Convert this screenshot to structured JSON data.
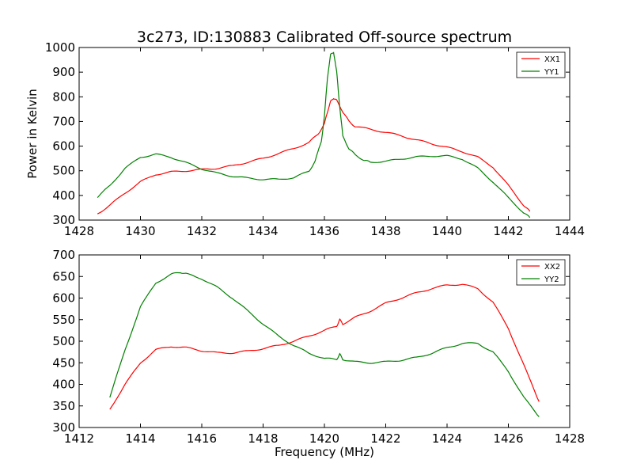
{
  "title": "3c273, ID:130883 Calibrated Off-source spectrum",
  "colors": {
    "red": "#ff0000",
    "green": "#008000"
  },
  "chart_data": [
    {
      "type": "line",
      "ylabel": "Power in Kelvin",
      "xlabel": "",
      "xlim": [
        1428,
        1444
      ],
      "ylim": [
        300,
        1000
      ],
      "xticks": [
        "1428",
        "1430",
        "1432",
        "1434",
        "1436",
        "1438",
        "1440",
        "1442",
        "1444"
      ],
      "yticks": [
        "300",
        "400",
        "500",
        "600",
        "700",
        "800",
        "900",
        "1000"
      ],
      "legend": "top-right",
      "series": [
        {
          "name": "XX1",
          "color": "#ff0000",
          "x": [
            1428.6,
            1429.0,
            1429.5,
            1430.0,
            1430.5,
            1431.0,
            1431.5,
            1432.0,
            1432.5,
            1433.0,
            1433.5,
            1434.0,
            1434.5,
            1435.0,
            1435.5,
            1435.8,
            1436.0,
            1436.1,
            1436.2,
            1436.3,
            1436.4,
            1436.6,
            1436.8,
            1437.0,
            1437.5,
            1438.0,
            1438.5,
            1439.0,
            1439.5,
            1440.0,
            1440.5,
            1441.0,
            1441.5,
            1442.0,
            1442.5,
            1442.7
          ],
          "y": [
            325,
            360,
            410,
            455,
            485,
            495,
            500,
            505,
            510,
            520,
            535,
            550,
            570,
            590,
            615,
            650,
            690,
            740,
            780,
            795,
            785,
            740,
            700,
            680,
            668,
            656,
            642,
            625,
            610,
            595,
            578,
            555,
            515,
            440,
            360,
            335
          ]
        },
        {
          "name": "YY1",
          "color": "#008000",
          "x": [
            1428.6,
            1429.0,
            1429.5,
            1430.0,
            1430.5,
            1431.0,
            1431.5,
            1432.0,
            1432.5,
            1433.0,
            1433.5,
            1434.0,
            1434.5,
            1435.0,
            1435.5,
            1435.7,
            1435.9,
            1436.0,
            1436.1,
            1436.2,
            1436.3,
            1436.4,
            1436.5,
            1436.6,
            1436.8,
            1437.0,
            1437.3,
            1437.5,
            1438.0,
            1438.5,
            1439.0,
            1439.5,
            1440.0,
            1440.5,
            1441.0,
            1441.5,
            1442.0,
            1442.5,
            1442.7
          ],
          "y": [
            392,
            440,
            510,
            555,
            567,
            555,
            532,
            508,
            490,
            478,
            470,
            465,
            465,
            472,
            498,
            540,
            620,
            720,
            880,
            970,
            982,
            900,
            760,
            640,
            590,
            565,
            542,
            535,
            538,
            548,
            556,
            560,
            560,
            548,
            510,
            455,
            390,
            330,
            310
          ]
        }
      ]
    },
    {
      "type": "line",
      "ylabel": "",
      "xlabel": "Frequency (MHz)",
      "xlim": [
        1412,
        1428
      ],
      "ylim": [
        300,
        700
      ],
      "xticks": [
        "1412",
        "1414",
        "1416",
        "1418",
        "1420",
        "1422",
        "1424",
        "1426",
        "1428"
      ],
      "yticks": [
        "300",
        "350",
        "400",
        "450",
        "500",
        "550",
        "600",
        "650",
        "700"
      ],
      "legend": "top-right",
      "series": [
        {
          "name": "XX2",
          "color": "#ff0000",
          "x": [
            1413.0,
            1413.5,
            1414.0,
            1414.5,
            1415.0,
            1415.5,
            1416.0,
            1416.5,
            1417.0,
            1417.5,
            1418.0,
            1418.5,
            1419.0,
            1419.5,
            1420.0,
            1420.4,
            1420.5,
            1420.6,
            1421.0,
            1421.5,
            1422.0,
            1422.5,
            1423.0,
            1423.5,
            1424.0,
            1424.5,
            1425.0,
            1425.5,
            1426.0,
            1426.5,
            1427.0
          ],
          "y": [
            342,
            400,
            450,
            480,
            488,
            485,
            478,
            473,
            473,
            477,
            483,
            490,
            500,
            512,
            525,
            535,
            550,
            540,
            555,
            570,
            588,
            600,
            612,
            622,
            630,
            632,
            622,
            590,
            530,
            445,
            360
          ]
        },
        {
          "name": "YY2",
          "color": "#008000",
          "x": [
            1413.0,
            1413.5,
            1414.0,
            1414.5,
            1415.0,
            1415.3,
            1415.5,
            1416.0,
            1416.5,
            1417.0,
            1417.5,
            1418.0,
            1418.5,
            1419.0,
            1419.5,
            1420.0,
            1420.4,
            1420.5,
            1420.6,
            1421.0,
            1421.5,
            1422.0,
            1422.5,
            1423.0,
            1423.5,
            1424.0,
            1424.5,
            1425.0,
            1425.5,
            1426.0,
            1426.5,
            1427.0
          ],
          "y": [
            370,
            480,
            580,
            635,
            655,
            660,
            656,
            645,
            625,
            600,
            570,
            540,
            512,
            490,
            472,
            460,
            458,
            470,
            458,
            452,
            450,
            452,
            456,
            462,
            472,
            485,
            495,
            495,
            475,
            430,
            370,
            325
          ]
        }
      ]
    }
  ]
}
